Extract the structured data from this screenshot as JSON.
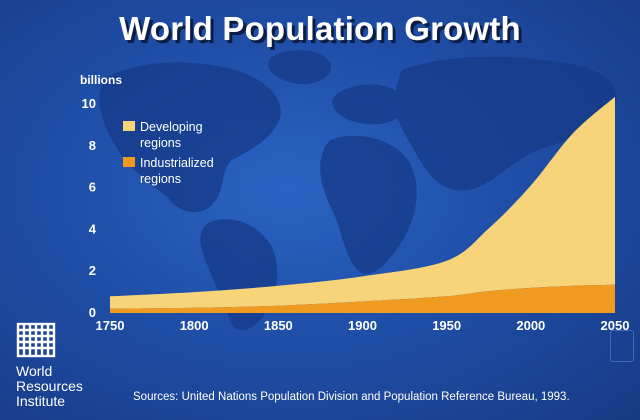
{
  "colors": {
    "background": "#1f4fa8",
    "developing": "#f7d37a",
    "industrialized": "#ef9a20",
    "text": "#ffffff"
  },
  "chart_data": {
    "type": "area",
    "stacked": true,
    "title": "World Population Growth",
    "ylabel": "billions",
    "xlabel": "",
    "x": [
      1750,
      1800,
      1850,
      1900,
      1950,
      1975,
      2000,
      2025,
      2050
    ],
    "xticks": [
      1750,
      1800,
      1850,
      1900,
      1950,
      2000,
      2050
    ],
    "yticks": [
      0,
      2,
      4,
      6,
      8,
      10
    ],
    "xlim": [
      1750,
      2050
    ],
    "ylim": [
      0,
      10
    ],
    "series": [
      {
        "name": "Industrialized regions",
        "values": [
          0.2,
          0.25,
          0.35,
          0.55,
          0.8,
          1.05,
          1.2,
          1.3,
          1.35
        ]
      },
      {
        "name": "Developing regions",
        "values": [
          0.6,
          0.75,
          0.95,
          1.2,
          1.7,
          3.0,
          4.9,
          7.3,
          9.0
        ]
      }
    ],
    "legend": {
      "position": "top-left",
      "entries": [
        {
          "line1": "Developing",
          "line2": "regions",
          "color": "#f7d37a"
        },
        {
          "line1": "Industrialized",
          "line2": "regions",
          "color": "#ef9a20"
        }
      ]
    },
    "grid": false
  },
  "footer": {
    "org_line1": "World",
    "org_line2": "Resources",
    "org_line3": "Institute",
    "source": "Sources: United Nations Population Division and Population Reference Bureau, 1993."
  }
}
